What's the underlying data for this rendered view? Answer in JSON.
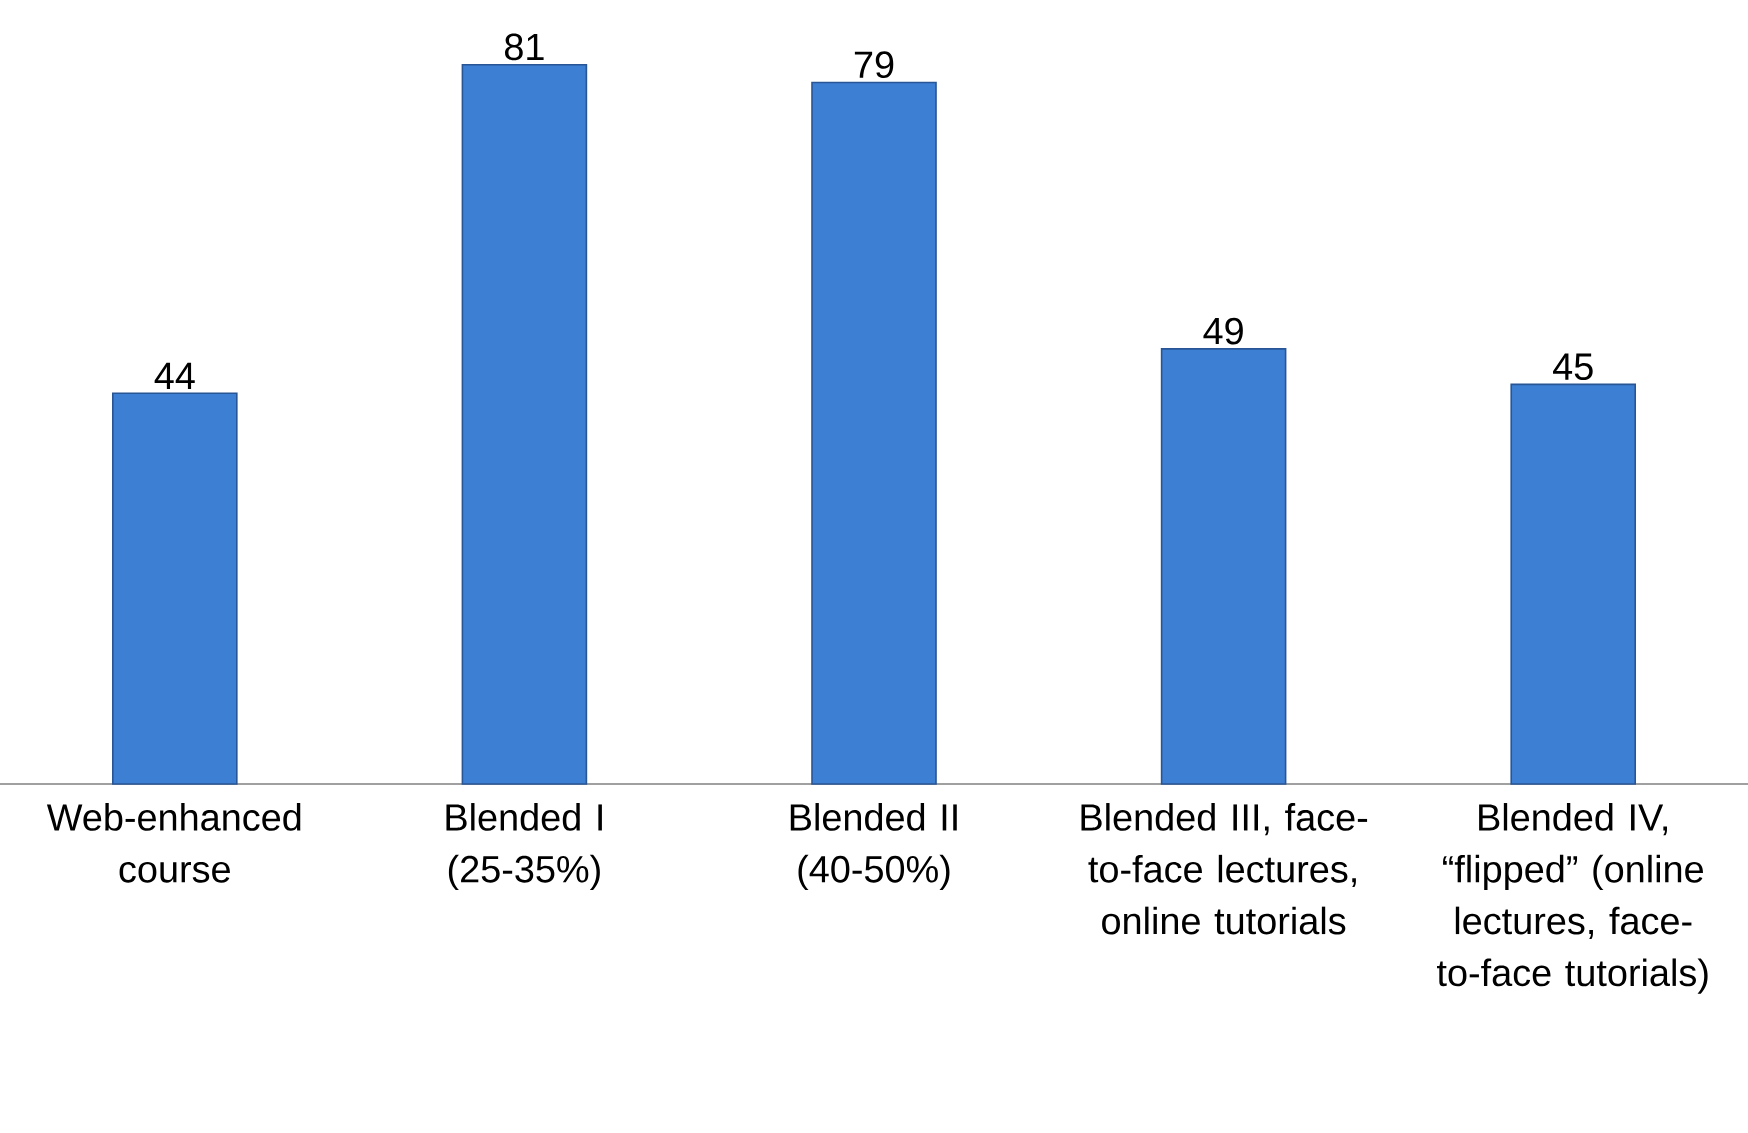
{
  "chart_data": {
    "type": "bar",
    "categories": [
      "Web-enhanced course",
      "Blended I (25-35%)",
      "Blended II (40-50%)",
      "Blended III, face-to-face lectures, online tutorials",
      "Blended IV, “flipped” (online lectures, face-to-face tutorials)"
    ],
    "values": [
      44,
      81,
      79,
      49,
      45
    ],
    "color": "#3d7fd2",
    "data_labels": true
  }
}
